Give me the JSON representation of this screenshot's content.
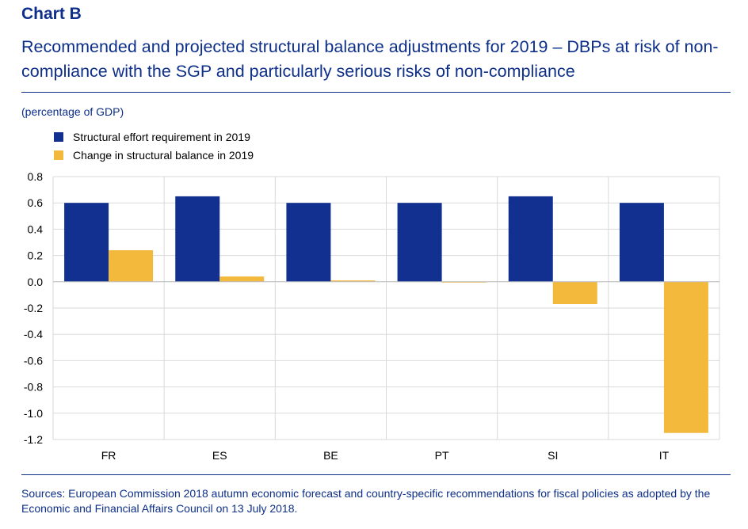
{
  "header": {
    "label": "Chart B",
    "title": "Recommended and projected structural balance adjustments for 2019 – DBPs at risk of non-compliance with the SGP and particularly serious risks of non-compliance",
    "unit": "(percentage of GDP)"
  },
  "footer": {
    "source": "Sources: European Commission 2018 autumn economic forecast and country-specific recommendations for fiscal policies as adopted by the Economic and Financial Affairs Council on 13 July 2018."
  },
  "colors": {
    "blue": "#12308f",
    "yellow": "#f3b93d",
    "grid": "#d9d9d9"
  },
  "chart_data": {
    "type": "bar",
    "categories": [
      "FR",
      "ES",
      "BE",
      "PT",
      "SI",
      "IT"
    ],
    "series": [
      {
        "name": "Structural effort requirement in 2019",
        "color": "#12308f",
        "values": [
          0.6,
          0.65,
          0.6,
          0.6,
          0.65,
          0.6
        ]
      },
      {
        "name": "Change in structural balance in 2019",
        "color": "#f3b93d",
        "values": [
          0.24,
          0.04,
          0.01,
          -0.005,
          -0.17,
          -1.15
        ]
      }
    ],
    "ylim": [
      -1.2,
      0.8
    ],
    "yticks": [
      0.8,
      0.6,
      0.4,
      0.2,
      0.0,
      -0.2,
      -0.4,
      -0.6,
      -0.8,
      -1.0,
      -1.2
    ],
    "ytick_labels": [
      "0.8",
      "0.6",
      "0.4",
      "0.2",
      "0.0",
      "-0.2",
      "-0.4",
      "-0.6",
      "-0.8",
      "-1.0",
      "-1.2"
    ],
    "grid": true,
    "legend_position": "top-left",
    "title": "",
    "xlabel": "",
    "ylabel": ""
  }
}
